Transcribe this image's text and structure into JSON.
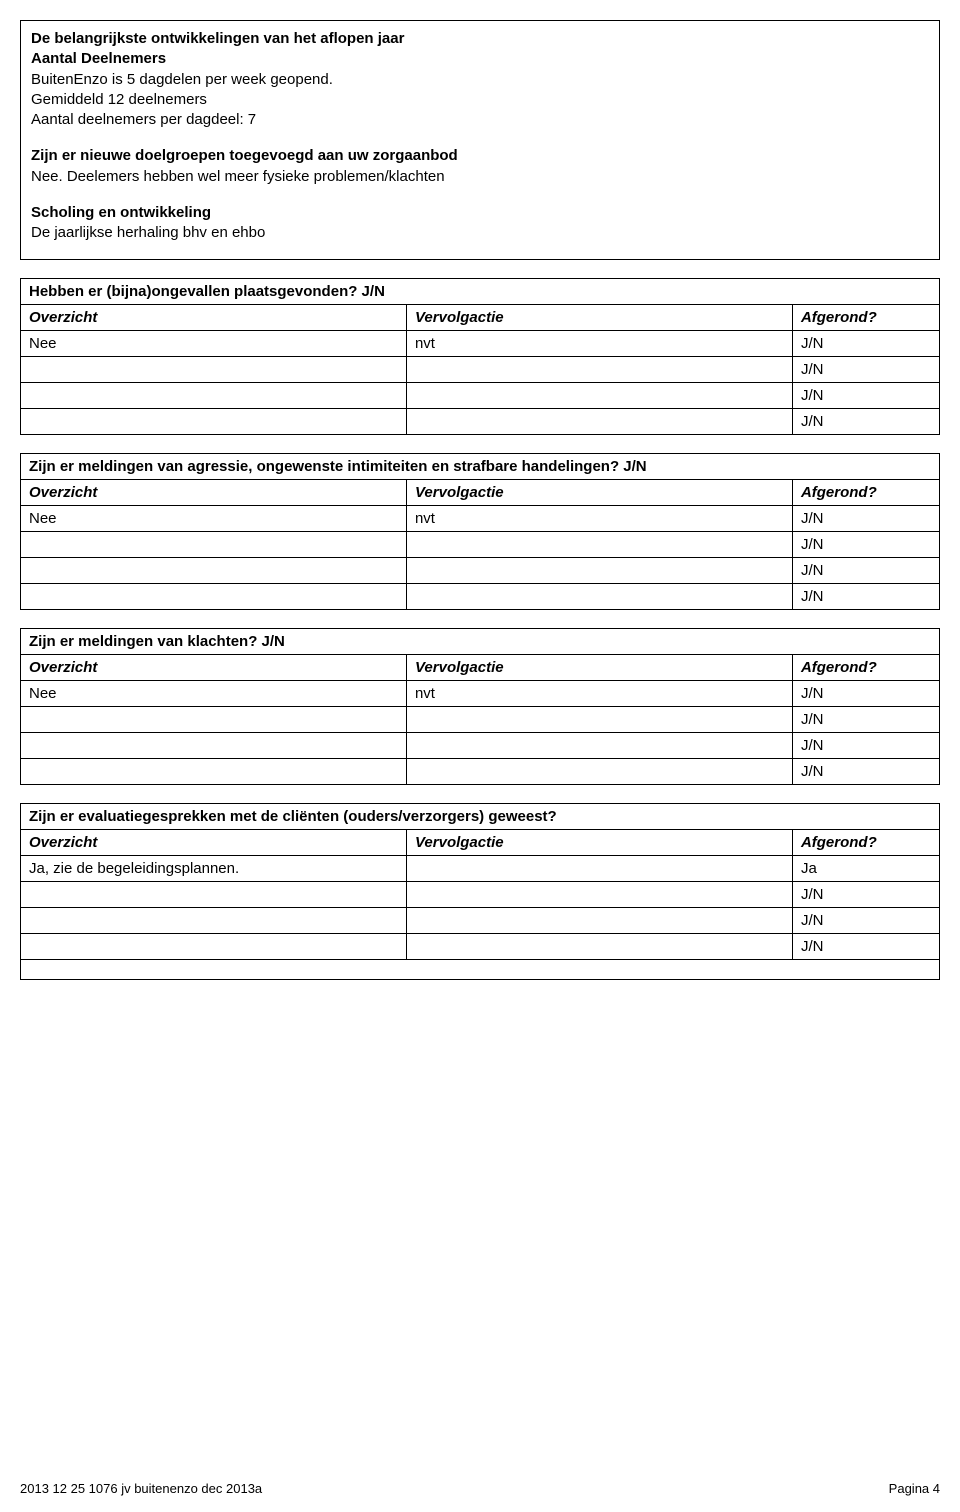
{
  "topbox": {
    "title": "De belangrijkste ontwikkelingen van het aflopen jaar",
    "sub1": "Aantal Deelnemers",
    "line1": "BuitenEnzo is 5 dagdelen per week geopend.",
    "line2": "Gemiddeld 12 deelnemers",
    "line3": "Aantal deelnemers per dagdeel: 7",
    "q1": "Zijn er nieuwe doelgroepen toegevoegd aan uw zorgaanbod",
    "a1": " Nee. Deelemers hebben wel meer fysieke problemen/klachten",
    "sub2": "Scholing en ontwikkeling",
    "line4": "De jaarlijkse herhaling bhv en ehbo"
  },
  "columns": {
    "overzicht": "Overzicht",
    "vervolgactie": "Vervolgactie",
    "afgerond": "Afgerond?"
  },
  "jn": "J/N",
  "tables": [
    {
      "title": "Hebben er (bijna)ongevallen plaatsgevonden? J/N",
      "rows": [
        {
          "c1": "Nee",
          "c2": "nvt",
          "c3": "J/N"
        },
        {
          "c1": "",
          "c2": "",
          "c3": "J/N"
        },
        {
          "c1": "",
          "c2": "",
          "c3": "J/N"
        },
        {
          "c1": "",
          "c2": "",
          "c3": "J/N"
        }
      ],
      "trailing_box": false
    },
    {
      "title": "Zijn er meldingen van agressie, ongewenste intimiteiten en strafbare handelingen? J/N",
      "rows": [
        {
          "c1": "Nee",
          "c2": "nvt",
          "c3": "J/N"
        },
        {
          "c1": "",
          "c2": "",
          "c3": "J/N"
        },
        {
          "c1": "",
          "c2": "",
          "c3": "J/N"
        },
        {
          "c1": "",
          "c2": "",
          "c3": "J/N"
        }
      ],
      "trailing_box": false
    },
    {
      "title": "Zijn er meldingen van klachten? J/N",
      "rows": [
        {
          "c1": "Nee",
          "c2": "nvt",
          "c3": "J/N"
        },
        {
          "c1": "",
          "c2": "",
          "c3": "J/N"
        },
        {
          "c1": "",
          "c2": "",
          "c3": "J/N"
        },
        {
          "c1": "",
          "c2": "",
          "c3": "J/N"
        }
      ],
      "trailing_box": false
    },
    {
      "title": "Zijn er evaluatiegesprekken met de cliënten (ouders/verzorgers) geweest?",
      "rows": [
        {
          "c1": "Ja, zie de begeleidingsplannen.",
          "c2": "",
          "c3": "Ja"
        },
        {
          "c1": "",
          "c2": "",
          "c3": "J/N"
        },
        {
          "c1": "",
          "c2": "",
          "c3": "J/N"
        },
        {
          "c1": "",
          "c2": "",
          "c3": "J/N"
        }
      ],
      "trailing_box": true
    }
  ],
  "footer": {
    "left": "2013 12 25 1076 jv buitenenzo dec 2013a",
    "right": "Pagina 4"
  }
}
